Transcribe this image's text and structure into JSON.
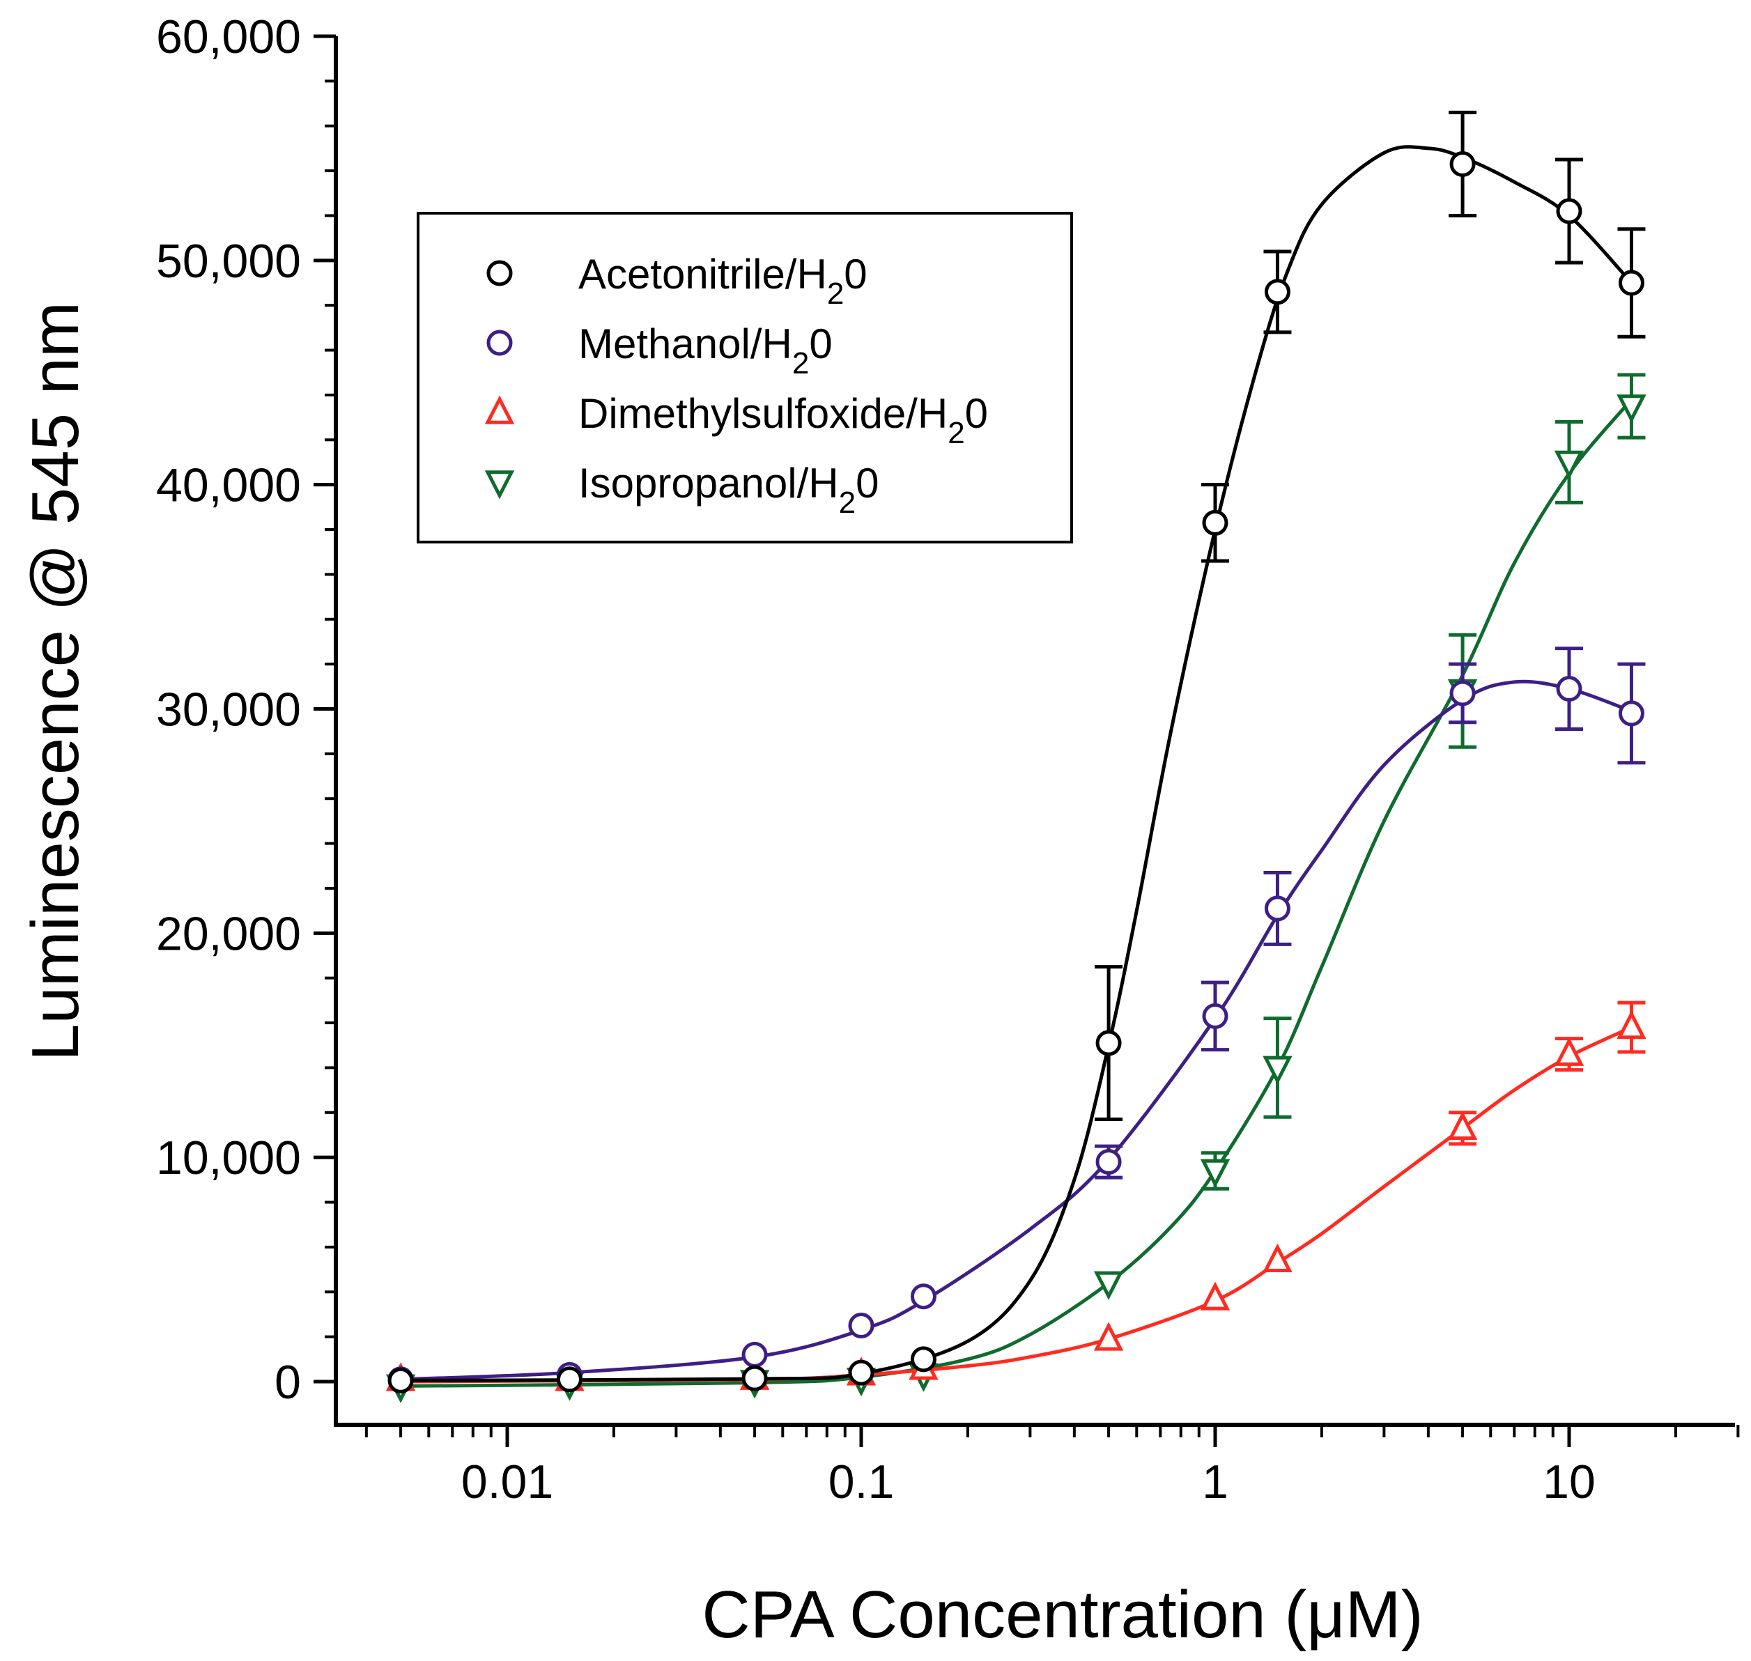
{
  "chart_data": {
    "type": "scatter",
    "title": "",
    "xlabel": "CPA Concentration (μM)",
    "ylabel": "Luminescence @ 545 nm",
    "xscale": "log",
    "xlim": [
      0.0035,
      30
    ],
    "ylim": [
      -2000,
      60000
    ],
    "x_ticks": [
      0.01,
      0.1,
      1,
      10
    ],
    "x_tick_labels": [
      "0.01",
      "0.1",
      "1",
      "10"
    ],
    "y_ticks": [
      0,
      10000,
      20000,
      30000,
      40000,
      50000,
      60000
    ],
    "y_tick_labels": [
      "0",
      "10,000",
      "20,000",
      "30,000",
      "40,000",
      "50,000",
      "60,000"
    ],
    "grid": false,
    "legend_position": "top-left",
    "series": [
      {
        "name": "Acetonitrile/H20",
        "legend_main": "Acetonitrile/H",
        "legend_sub": "2",
        "legend_tail": "0",
        "color": "#000000",
        "marker": "circle",
        "x": [
          0.005,
          0.015,
          0.05,
          0.1,
          0.15,
          0.5,
          1,
          1.5,
          5,
          10,
          15
        ],
        "y": [
          50,
          100,
          150,
          400,
          1000,
          15100,
          38300,
          48600,
          54300,
          52200,
          49000
        ],
        "err": [
          0,
          0,
          0,
          0,
          0,
          3400,
          1700,
          1800,
          2300,
          2300,
          2400
        ],
        "curve": [
          [
            0.005,
            50
          ],
          [
            0.05,
            120
          ],
          [
            0.1,
            350
          ],
          [
            0.2,
            1800
          ],
          [
            0.3,
            4500
          ],
          [
            0.4,
            9000
          ],
          [
            0.5,
            15000
          ],
          [
            0.6,
            21000
          ],
          [
            0.75,
            29000
          ],
          [
            1,
            38000
          ],
          [
            1.3,
            45000
          ],
          [
            1.6,
            49500
          ],
          [
            2,
            52500
          ],
          [
            3,
            54800
          ],
          [
            4,
            55000
          ],
          [
            5,
            54600
          ],
          [
            7,
            53500
          ],
          [
            10,
            52000
          ],
          [
            15,
            49000
          ]
        ]
      },
      {
        "name": "Methanol/H20",
        "legend_main": "Methanol/H",
        "legend_sub": "2",
        "legend_tail": "0",
        "color": "#3d1f86",
        "marker": "circle",
        "x": [
          0.005,
          0.015,
          0.05,
          0.1,
          0.15,
          0.5,
          1,
          1.5,
          5,
          10,
          15
        ],
        "y": [
          100,
          300,
          1200,
          2500,
          3800,
          9800,
          16300,
          21100,
          30700,
          30900,
          29800
        ],
        "err": [
          0,
          0,
          0,
          0,
          0,
          700,
          1500,
          1600,
          1300,
          1800,
          2200
        ],
        "curve": [
          [
            0.005,
            100
          ],
          [
            0.015,
            400
          ],
          [
            0.05,
            1100
          ],
          [
            0.1,
            2300
          ],
          [
            0.15,
            3600
          ],
          [
            0.3,
            6800
          ],
          [
            0.5,
            9900
          ],
          [
            1,
            16200
          ],
          [
            1.5,
            20800
          ],
          [
            2,
            23700
          ],
          [
            3,
            27500
          ],
          [
            5,
            30400
          ],
          [
            7,
            31200
          ],
          [
            10,
            30900
          ],
          [
            15,
            29900
          ]
        ]
      },
      {
        "name": "Dimethylsulfoxide/H20",
        "legend_main": "Dimethylsulfoxide/H",
        "legend_sub": "2",
        "legend_tail": "0",
        "color": "#ff2b20",
        "marker": "triangle-up",
        "x": [
          0.005,
          0.015,
          0.05,
          0.1,
          0.15,
          0.5,
          1,
          1.5,
          5,
          10,
          15
        ],
        "y": [
          100,
          100,
          150,
          350,
          600,
          1900,
          3700,
          5400,
          11300,
          14600,
          15800
        ],
        "err": [
          0,
          0,
          0,
          0,
          0,
          0,
          0,
          0,
          700,
          700,
          1100
        ],
        "curve": [
          [
            0.005,
            0
          ],
          [
            0.05,
            100
          ],
          [
            0.1,
            300
          ],
          [
            0.2,
            700
          ],
          [
            0.3,
            1100
          ],
          [
            0.5,
            1900
          ],
          [
            1,
            3600
          ],
          [
            1.5,
            5300
          ],
          [
            2,
            6600
          ],
          [
            3,
            8700
          ],
          [
            5,
            11300
          ],
          [
            7,
            13000
          ],
          [
            10,
            14500
          ],
          [
            15,
            15800
          ]
        ]
      },
      {
        "name": "Isopropanol/H20",
        "legend_main": "Isopropanol/H",
        "legend_sub": "2",
        "legend_tail": "0",
        "color": "#0f6b2e",
        "marker": "triangle-down",
        "x": [
          0.005,
          0.015,
          0.05,
          0.1,
          0.15,
          0.5,
          1,
          1.5,
          5,
          10,
          15
        ],
        "y": [
          -200,
          -100,
          0,
          100,
          300,
          4400,
          9400,
          14000,
          30800,
          41000,
          43500
        ],
        "err": [
          0,
          0,
          0,
          0,
          0,
          0,
          800,
          2200,
          2500,
          1800,
          1400
        ],
        "curve": [
          [
            0.005,
            -200
          ],
          [
            0.05,
            -50
          ],
          [
            0.1,
            200
          ],
          [
            0.2,
            1000
          ],
          [
            0.3,
            2100
          ],
          [
            0.5,
            4400
          ],
          [
            0.75,
            6900
          ],
          [
            1,
            9400
          ],
          [
            1.5,
            14000
          ],
          [
            2,
            18500
          ],
          [
            3,
            25000
          ],
          [
            5,
            31500
          ],
          [
            7,
            36500
          ],
          [
            10,
            40500
          ],
          [
            15,
            43800
          ]
        ]
      }
    ]
  }
}
